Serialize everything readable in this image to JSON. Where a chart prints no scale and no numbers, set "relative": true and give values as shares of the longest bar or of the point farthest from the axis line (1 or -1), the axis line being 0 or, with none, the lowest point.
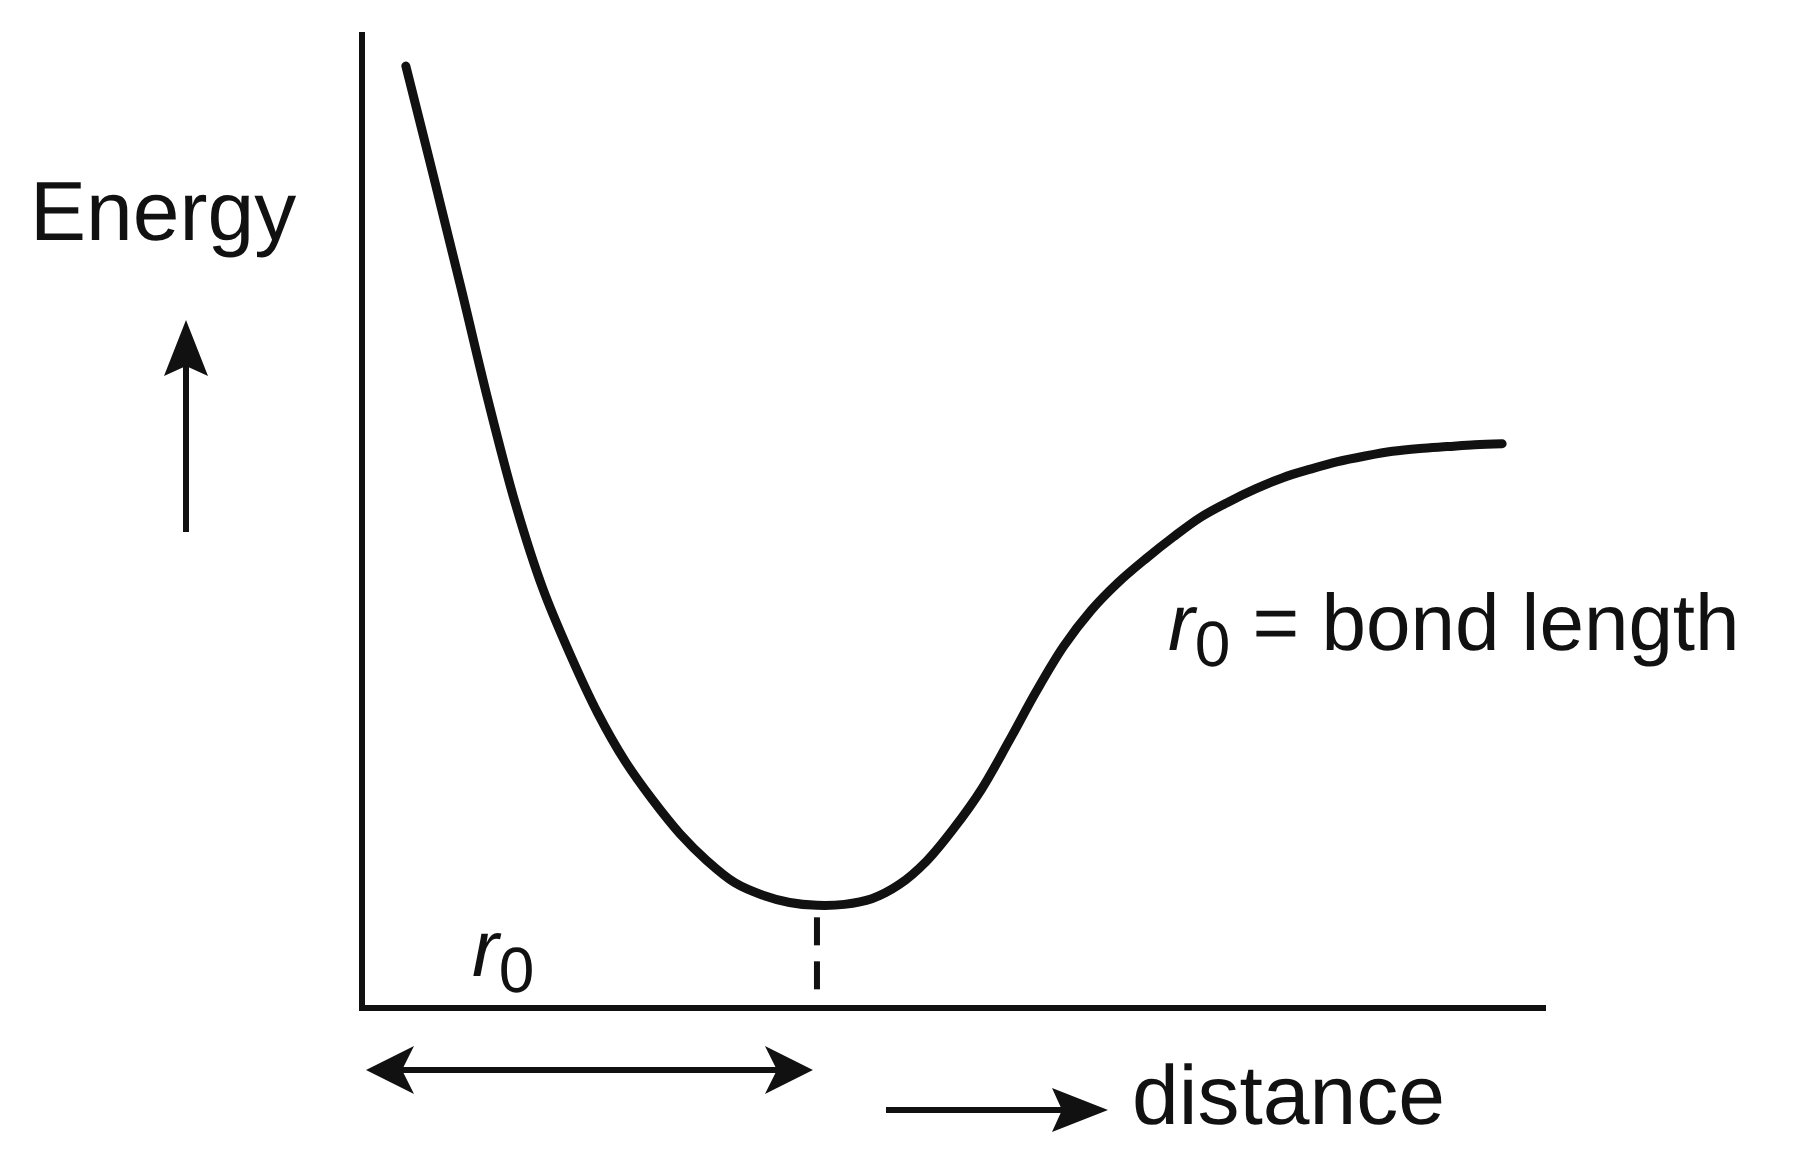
{
  "chart_data": {
    "type": "line",
    "relative": true,
    "xlabel": "distance",
    "ylabel": "Energy",
    "annotations": [
      "r$_{0}$ = bond length",
      "r$_{0}$"
    ],
    "categories": [
      null,
      null,
      null,
      null,
      null,
      null,
      null,
      null,
      null,
      null,
      null,
      null,
      null,
      null,
      null,
      null,
      null,
      null,
      null,
      null,
      null,
      null,
      null,
      null,
      null,
      null,
      null,
      null,
      null,
      null,
      null,
      null,
      null,
      null,
      null,
      null,
      null,
      null,
      null,
      null,
      null
    ],
    "series": [
      {
        "color": "#111111",
        "values": [
          1.0,
          0.884,
          0.766,
          0.645,
          0.535,
          0.445,
          0.375,
          0.313,
          0.262,
          0.221,
          0.185,
          0.156,
          0.133,
          0.12,
          0.112,
          0.109,
          0.11,
          0.116,
          0.131,
          0.156,
          0.191,
          0.232,
          0.283,
          0.336,
          0.384,
          0.422,
          0.452,
          0.477,
          0.5,
          0.521,
          0.537,
          0.551,
          0.563,
          0.572,
          0.58,
          0.586,
          0.591,
          0.594,
          0.596,
          0.598,
          0.599
        ]
      }
    ]
  }
}
